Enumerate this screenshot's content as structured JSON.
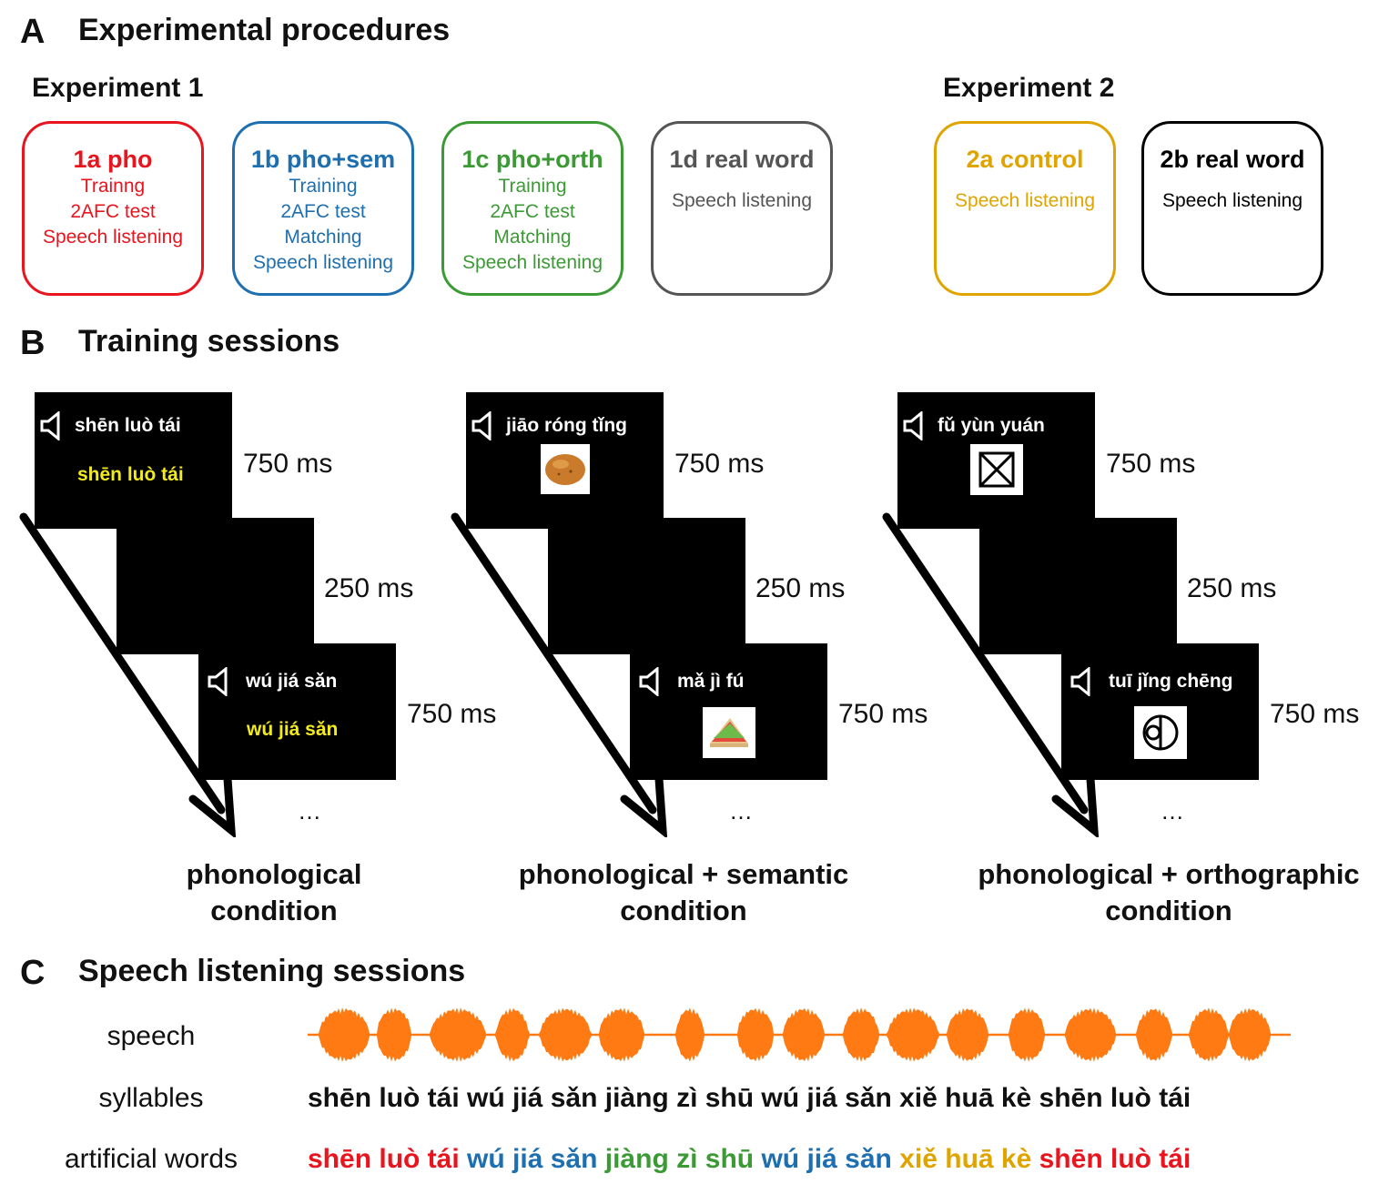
{
  "sectionA": {
    "letter": "A",
    "title": "Experimental procedures"
  },
  "exp1": {
    "title": "Experiment 1"
  },
  "exp2": {
    "title": "Experiment 2"
  },
  "boxes": [
    {
      "title": "1a pho",
      "lines": [
        "Trainng",
        "2AFC test",
        "Speech listening"
      ],
      "color": "#e8141e"
    },
    {
      "title": "1b pho+sem",
      "lines": [
        "Training",
        "2AFC test",
        "Matching",
        "Speech listening"
      ],
      "color": "#1e6fb0"
    },
    {
      "title": "1c pho+orth",
      "lines": [
        "Training",
        "2AFC test",
        "Matching",
        "Speech listening"
      ],
      "color": "#3c9a35"
    },
    {
      "title": "1d real word",
      "lines": [
        "Speech listening"
      ],
      "color": "#555555"
    },
    {
      "title": "2a control",
      "lines": [
        "Speech listening"
      ],
      "color": "#e0a400"
    },
    {
      "title": "2b real word",
      "lines": [
        "Speech listening"
      ],
      "color": "#000000"
    }
  ],
  "sectionB": {
    "letter": "B",
    "title": "Training sessions"
  },
  "training": [
    {
      "word1": "shēn luò tái",
      "word1_visual": "shēn luò tái",
      "word2": "wú jiá sǎn",
      "word2_visual": "wú jiá sǎn",
      "t1": "750 ms",
      "t2": "250 ms",
      "t3": "750 ms",
      "dots": "…",
      "condition": [
        "phonological",
        "condition"
      ]
    },
    {
      "word1": "jiāo róng tǐng",
      "word2": "mǎ jì fú",
      "image1": "potato",
      "image2": "sandwich",
      "t1": "750 ms",
      "t2": "250 ms",
      "t3": "750 ms",
      "dots": "…",
      "condition": [
        "phonological + semantic",
        "condition"
      ]
    },
    {
      "word1": "fǔ yùn yuán",
      "word2": "tuī jǐng chēng",
      "image1": "abstract-glyph",
      "image2": "abstract-glyph",
      "t1": "750 ms",
      "t2": "250 ms",
      "t3": "750 ms",
      "dots": "…",
      "condition": [
        "phonological + orthographic",
        "condition"
      ]
    }
  ],
  "sectionC": {
    "letter": "C",
    "title": "Speech listening sessions"
  },
  "listening": {
    "speech_label": "speech",
    "syllables_label": "syllables",
    "words_label": "artificial words",
    "waveform_color": "#ff7a12",
    "syllables": "shēn luò tái wú jiá sǎn jiàng zì shū wú jiá sǎn xiě huā kè shēn luò tái",
    "artificial_words": [
      {
        "text": "shēn luò tái",
        "color": "#e8141e"
      },
      {
        "text": "wú jiá sǎn",
        "color": "#1e6fb0"
      },
      {
        "text": "jiàng zì shū",
        "color": "#3c9a35"
      },
      {
        "text": "wú jiá sǎn",
        "color": "#1e6fb0"
      },
      {
        "text": "xiě huā kè",
        "color": "#e0a400"
      },
      {
        "text": "shēn luò tái",
        "color": "#e8141e"
      }
    ]
  }
}
